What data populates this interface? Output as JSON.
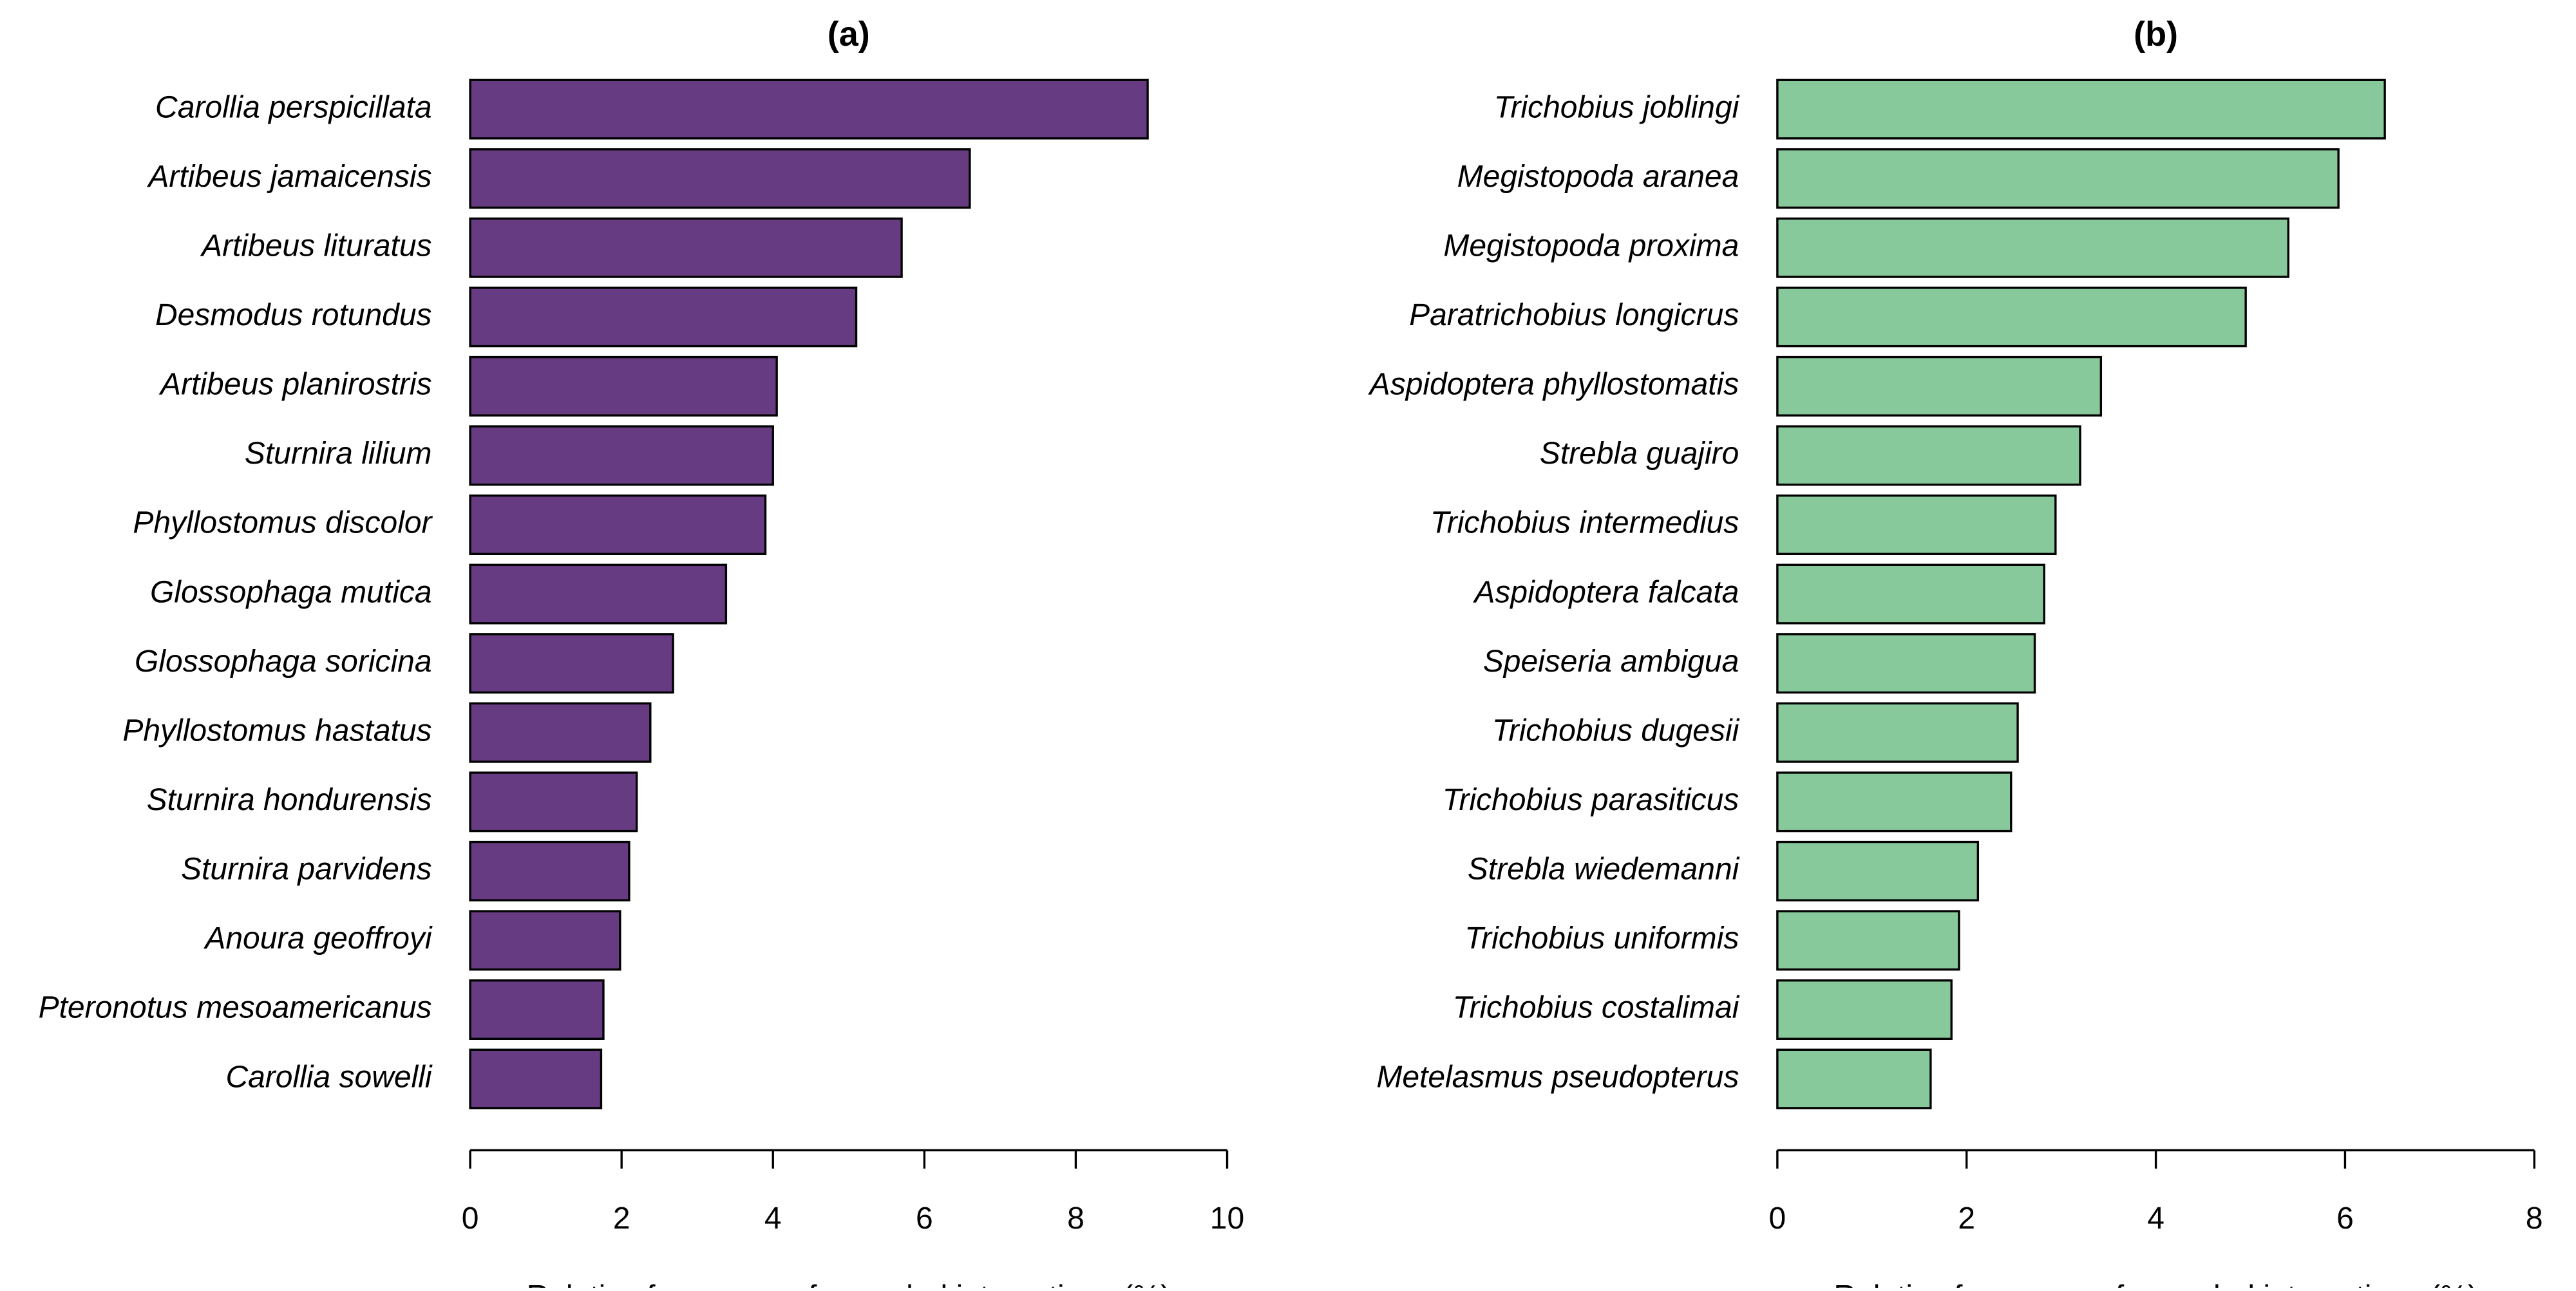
{
  "chart_data": [
    {
      "type": "bar",
      "orientation": "horizontal",
      "title": "(a)",
      "xlabel": "Relative frequency of recorded interactions (%)",
      "ylabel": "",
      "xlim": [
        0,
        10
      ],
      "ticks": [
        0,
        2,
        4,
        6,
        8,
        10
      ],
      "categories": [
        "Carollia perspicillata",
        "Artibeus jamaicensis",
        "Artibeus lituratus",
        "Desmodus rotundus",
        "Artibeus planirostris",
        "Sturnira lilium",
        "Phyllostomus discolor",
        "Glossophaga mutica",
        "Glossophaga soricina",
        "Phyllostomus hastatus",
        "Sturnira hondurensis",
        "Sturnira parvidens",
        "Anoura geoffroyi",
        "Pteronotus mesoamericanus",
        "Carollia sowelli"
      ],
      "values": [
        8.95,
        6.6,
        5.7,
        5.1,
        4.05,
        4.0,
        3.9,
        3.38,
        2.68,
        2.38,
        2.2,
        2.1,
        1.98,
        1.76,
        1.73
      ],
      "bar_color": "#663b82",
      "grid": false
    },
    {
      "type": "bar",
      "orientation": "horizontal",
      "title": "(b)",
      "xlabel": "Relative frequency of recorded interactions (%)",
      "ylabel": "",
      "xlim": [
        0,
        8
      ],
      "ticks": [
        0,
        2,
        4,
        6,
        8
      ],
      "categories": [
        "Trichobius joblingi",
        "Megistopoda aranea",
        "Megistopoda proxima",
        "Paratrichobius longicrus",
        "Aspidoptera phyllostomatis",
        "Strebla guajiro",
        "Trichobius intermedius",
        "Aspidoptera falcata",
        "Speiseria ambigua",
        "Trichobius dugesii",
        "Trichobius parasiticus",
        "Strebla wiedemanni",
        "Trichobius uniformis",
        "Trichobius costalimai",
        "Metelasmus pseudopterus"
      ],
      "values": [
        6.42,
        5.93,
        5.4,
        4.95,
        3.42,
        3.2,
        2.94,
        2.82,
        2.72,
        2.54,
        2.47,
        2.12,
        1.92,
        1.84,
        1.62
      ],
      "bar_color": "#88c99b",
      "grid": false
    }
  ]
}
